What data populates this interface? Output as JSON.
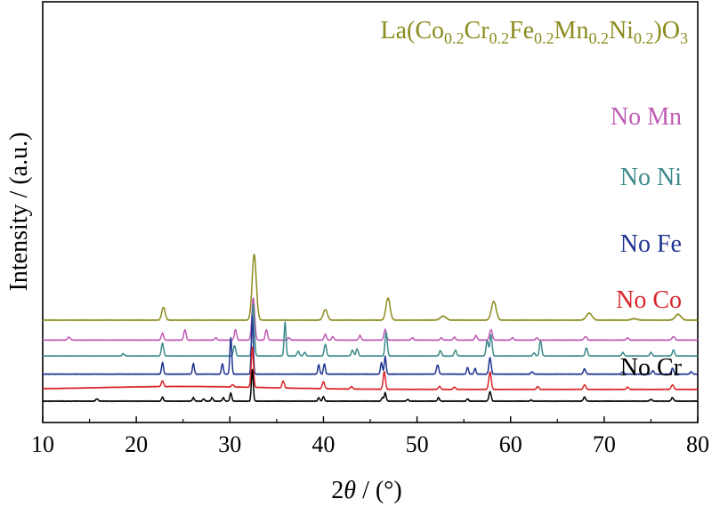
{
  "chart_data": {
    "type": "line",
    "title": "",
    "xlabel": "2θ / (°)",
    "xlabel_parts": {
      "theta": "θ",
      "rest": " / (°)",
      "prefix": "2"
    },
    "ylabel": "Intensity / (a.u.)",
    "xlim": [
      10,
      80
    ],
    "xticks": [
      "10",
      "20",
      "30",
      "40",
      "50",
      "60",
      "70",
      "80"
    ],
    "y_ticks_shown": false,
    "grid": false,
    "legend": "inline labels, right side",
    "series": [
      {
        "name": "La(Co0.2Cr0.2Fe0.2Mn0.2Ni0.2)O3",
        "label_parts": [
          "La(Co",
          "0.2",
          "Cr",
          "0.2",
          "Fe",
          "0.2",
          "Mn",
          "0.2",
          "Ni",
          "0.2",
          ")O",
          "3"
        ],
        "color": "#8b8b1e",
        "offset": 6.9,
        "baseline_hump": 0.0,
        "peaks": [
          [
            22.9,
            1.1,
            0.18
          ],
          [
            32.6,
            5.6,
            0.22
          ],
          [
            40.2,
            0.9,
            0.22
          ],
          [
            46.9,
            1.9,
            0.22
          ],
          [
            52.8,
            0.35,
            0.3
          ],
          [
            58.2,
            1.6,
            0.25
          ],
          [
            68.4,
            0.6,
            0.3
          ],
          [
            73.2,
            0.12,
            0.3
          ],
          [
            77.9,
            0.5,
            0.3
          ]
        ]
      },
      {
        "name": "No Mn",
        "color": "#c05cb5",
        "offset": 5.2,
        "baseline_hump": 0.0,
        "peaks": [
          [
            12.8,
            0.25,
            0.15
          ],
          [
            22.8,
            0.6,
            0.12
          ],
          [
            25.2,
            0.9,
            0.12
          ],
          [
            28.5,
            0.2,
            0.12
          ],
          [
            30.6,
            0.9,
            0.12
          ],
          [
            32.5,
            3.6,
            0.15
          ],
          [
            33.9,
            0.9,
            0.12
          ],
          [
            36.3,
            0.2,
            0.12
          ],
          [
            40.2,
            0.5,
            0.12
          ],
          [
            41.0,
            0.3,
            0.12
          ],
          [
            43.9,
            0.4,
            0.12
          ],
          [
            46.6,
            0.9,
            0.13
          ],
          [
            49.5,
            0.2,
            0.12
          ],
          [
            52.6,
            0.2,
            0.12
          ],
          [
            54.0,
            0.25,
            0.12
          ],
          [
            56.3,
            0.4,
            0.12
          ],
          [
            57.9,
            0.9,
            0.15
          ],
          [
            60.2,
            0.2,
            0.12
          ],
          [
            62.8,
            0.2,
            0.12
          ],
          [
            68.0,
            0.3,
            0.15
          ],
          [
            72.5,
            0.2,
            0.12
          ],
          [
            77.4,
            0.3,
            0.15
          ]
        ]
      },
      {
        "name": "No Ni",
        "color": "#3e8a8c",
        "offset": 3.85,
        "baseline_hump": 0.0,
        "peaks": [
          [
            18.6,
            0.2,
            0.12
          ],
          [
            22.8,
            1.1,
            0.12
          ],
          [
            30.5,
            0.9,
            0.12
          ],
          [
            32.5,
            4.4,
            0.12
          ],
          [
            35.9,
            2.9,
            0.1
          ],
          [
            37.3,
            0.4,
            0.12
          ],
          [
            38.0,
            0.3,
            0.12
          ],
          [
            40.2,
            1.0,
            0.12
          ],
          [
            43.1,
            0.5,
            0.12
          ],
          [
            43.6,
            0.6,
            0.12
          ],
          [
            46.7,
            2.0,
            0.12
          ],
          [
            52.5,
            0.45,
            0.12
          ],
          [
            54.1,
            0.5,
            0.12
          ],
          [
            57.5,
            1.3,
            0.12
          ],
          [
            57.9,
            1.8,
            0.12
          ],
          [
            62.5,
            0.25,
            0.12
          ],
          [
            63.2,
            1.3,
            0.12
          ],
          [
            68.1,
            0.7,
            0.12
          ],
          [
            72.0,
            0.3,
            0.12
          ],
          [
            75.0,
            0.3,
            0.12
          ],
          [
            77.4,
            0.5,
            0.12
          ]
        ]
      },
      {
        "name": "No Fe",
        "color": "#1f3590",
        "offset": 2.3,
        "baseline_hump": 0.0,
        "peaks": [
          [
            22.8,
            1.0,
            0.1
          ],
          [
            26.1,
            0.9,
            0.1
          ],
          [
            29.2,
            0.9,
            0.1
          ],
          [
            30.1,
            3.1,
            0.1
          ],
          [
            32.4,
            5.0,
            0.1
          ],
          [
            39.5,
            0.8,
            0.1
          ],
          [
            40.1,
            0.9,
            0.1
          ],
          [
            46.2,
            1.0,
            0.1
          ],
          [
            46.6,
            1.5,
            0.1
          ],
          [
            52.2,
            0.8,
            0.12
          ],
          [
            55.4,
            0.6,
            0.1
          ],
          [
            56.2,
            0.5,
            0.1
          ],
          [
            57.8,
            1.4,
            0.12
          ],
          [
            62.3,
            0.2,
            0.12
          ],
          [
            67.9,
            0.45,
            0.12
          ],
          [
            72.0,
            0.2,
            0.12
          ],
          [
            75.2,
            0.3,
            0.12
          ],
          [
            77.3,
            0.5,
            0.12
          ],
          [
            79.3,
            0.2,
            0.12
          ]
        ]
      },
      {
        "name": "No Co",
        "color": "#d9252a",
        "offset": 1.0,
        "baseline_hump": 0.25,
        "peaks": [
          [
            22.8,
            0.5,
            0.12
          ],
          [
            30.3,
            0.2,
            0.12
          ],
          [
            32.4,
            3.4,
            0.12
          ],
          [
            35.7,
            0.6,
            0.12
          ],
          [
            40.0,
            0.6,
            0.12
          ],
          [
            43.0,
            0.2,
            0.12
          ],
          [
            46.5,
            1.5,
            0.12
          ],
          [
            52.4,
            0.25,
            0.12
          ],
          [
            54.0,
            0.2,
            0.12
          ],
          [
            57.8,
            1.5,
            0.13
          ],
          [
            62.9,
            0.25,
            0.12
          ],
          [
            67.9,
            0.4,
            0.12
          ],
          [
            72.5,
            0.2,
            0.12
          ],
          [
            77.3,
            0.4,
            0.13
          ]
        ]
      },
      {
        "name": "No Cr",
        "color": "#000000",
        "offset": 0.0,
        "baseline_hump": 0.0,
        "peaks": [
          [
            15.8,
            0.2,
            0.12
          ],
          [
            22.8,
            0.35,
            0.1
          ],
          [
            26.1,
            0.3,
            0.1
          ],
          [
            27.2,
            0.2,
            0.1
          ],
          [
            28.1,
            0.3,
            0.1
          ],
          [
            29.3,
            0.3,
            0.1
          ],
          [
            30.1,
            0.7,
            0.1
          ],
          [
            32.4,
            2.7,
            0.1
          ],
          [
            39.5,
            0.3,
            0.1
          ],
          [
            40.0,
            0.4,
            0.1
          ],
          [
            46.3,
            0.3,
            0.1
          ],
          [
            46.6,
            0.7,
            0.1
          ],
          [
            49.0,
            0.15,
            0.1
          ],
          [
            52.3,
            0.3,
            0.1
          ],
          [
            55.4,
            0.2,
            0.1
          ],
          [
            57.8,
            0.8,
            0.12
          ],
          [
            62.2,
            0.1,
            0.1
          ],
          [
            67.9,
            0.35,
            0.12
          ],
          [
            75.0,
            0.15,
            0.12
          ],
          [
            77.3,
            0.3,
            0.12
          ]
        ]
      }
    ]
  }
}
